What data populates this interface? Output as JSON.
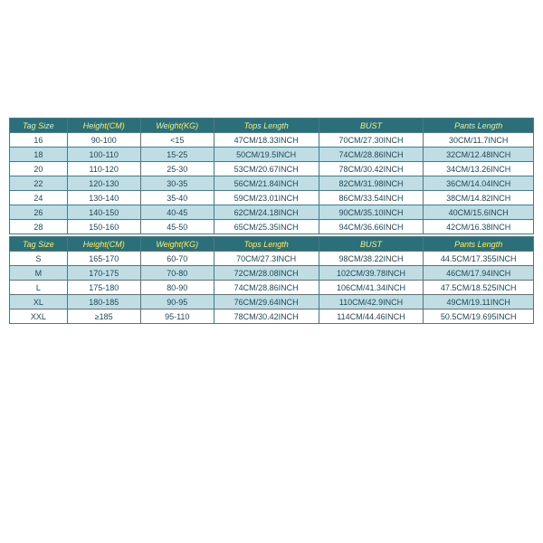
{
  "colors": {
    "header_bg": "#2a6f7a",
    "header_text": "#ffee66",
    "border": "#4a7a88",
    "row_even_bg": "#c0dde4",
    "row_odd_bg": "#ffffff",
    "row_text": "#1a4a5a"
  },
  "table1": {
    "headers": [
      "Tag Size",
      "Height(CM)",
      "Weight(KG)",
      "Tops Length",
      "BUST",
      "Pants Length"
    ],
    "rows": [
      [
        "16",
        "90-100",
        "<15",
        "47CM/18.33INCH",
        "70CM/27.30INCH",
        "30CM/11.7INCH"
      ],
      [
        "18",
        "100-110",
        "15-25",
        "50CM/19.5INCH",
        "74CM/28.86INCH",
        "32CM/12.48INCH"
      ],
      [
        "20",
        "110-120",
        "25-30",
        "53CM/20.67INCH",
        "78CM/30.42INCH",
        "34CM/13.26INCH"
      ],
      [
        "22",
        "120-130",
        "30-35",
        "56CM/21.84INCH",
        "82CM/31.98INCH",
        "36CM/14.04INCH"
      ],
      [
        "24",
        "130-140",
        "35-40",
        "59CM/23.01INCH",
        "86CM/33.54INCH",
        "38CM/14.82INCH"
      ],
      [
        "26",
        "140-150",
        "40-45",
        "62CM/24.18INCH",
        "90CM/35.10INCH",
        "40CM/15.6INCH"
      ],
      [
        "28",
        "150-160",
        "45-50",
        "65CM/25.35INCH",
        "94CM/36.66INCH",
        "42CM/16.38INCH"
      ]
    ]
  },
  "table2": {
    "headers": [
      "Tag Size",
      "Height(CM)",
      "Weight(KG)",
      "Tops Length",
      "BUST",
      "Pants Length"
    ],
    "rows": [
      [
        "S",
        "165-170",
        "60-70",
        "70CM/27.3INCH",
        "98CM/38.22INCH",
        "44.5CM/17.355INCH"
      ],
      [
        "M",
        "170-175",
        "70-80",
        "72CM/28.08INCH",
        "102CM/39.78INCH",
        "46CM/17.94INCH"
      ],
      [
        "L",
        "175-180",
        "80-90",
        "74CM/28.86INCH",
        "106CM/41.34INCH",
        "47.5CM/18.525INCH"
      ],
      [
        "XL",
        "180-185",
        "90-95",
        "76CM/29.64INCH",
        "110CM/42.9INCH",
        "49CM/19.11INCH"
      ],
      [
        "XXL",
        "≥185",
        "95-110",
        "78CM/30.42INCH",
        "114CM/44.46INCH",
        "50.5CM/19.695INCH"
      ]
    ]
  }
}
